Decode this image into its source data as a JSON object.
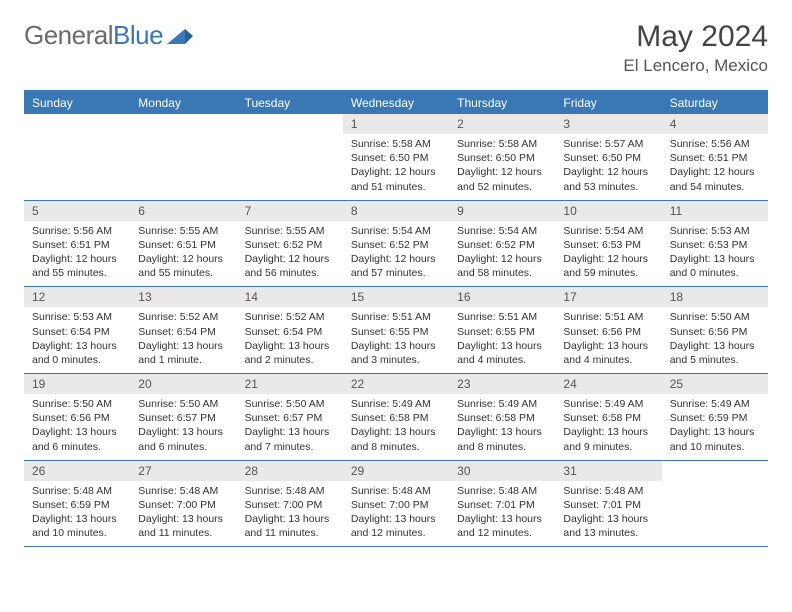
{
  "brand": {
    "part1": "General",
    "part2": "Blue"
  },
  "title": "May 2024",
  "location": "El Lencero, Mexico",
  "colors": {
    "header_bar": "#3a78b5",
    "daynum_bg": "#e9e9e9",
    "text": "#333333",
    "title_text": "#444444",
    "rule": "#3a78b5"
  },
  "days_of_week": [
    "Sunday",
    "Monday",
    "Tuesday",
    "Wednesday",
    "Thursday",
    "Friday",
    "Saturday"
  ],
  "weeks": [
    [
      {
        "blank": true
      },
      {
        "blank": true
      },
      {
        "blank": true
      },
      {
        "n": "1",
        "sr": "5:58 AM",
        "ss": "6:50 PM",
        "dl": "12 hours and 51 minutes."
      },
      {
        "n": "2",
        "sr": "5:58 AM",
        "ss": "6:50 PM",
        "dl": "12 hours and 52 minutes."
      },
      {
        "n": "3",
        "sr": "5:57 AM",
        "ss": "6:50 PM",
        "dl": "12 hours and 53 minutes."
      },
      {
        "n": "4",
        "sr": "5:56 AM",
        "ss": "6:51 PM",
        "dl": "12 hours and 54 minutes."
      }
    ],
    [
      {
        "n": "5",
        "sr": "5:56 AM",
        "ss": "6:51 PM",
        "dl": "12 hours and 55 minutes."
      },
      {
        "n": "6",
        "sr": "5:55 AM",
        "ss": "6:51 PM",
        "dl": "12 hours and 55 minutes."
      },
      {
        "n": "7",
        "sr": "5:55 AM",
        "ss": "6:52 PM",
        "dl": "12 hours and 56 minutes."
      },
      {
        "n": "8",
        "sr": "5:54 AM",
        "ss": "6:52 PM",
        "dl": "12 hours and 57 minutes."
      },
      {
        "n": "9",
        "sr": "5:54 AM",
        "ss": "6:52 PM",
        "dl": "12 hours and 58 minutes."
      },
      {
        "n": "10",
        "sr": "5:54 AM",
        "ss": "6:53 PM",
        "dl": "12 hours and 59 minutes."
      },
      {
        "n": "11",
        "sr": "5:53 AM",
        "ss": "6:53 PM",
        "dl": "13 hours and 0 minutes."
      }
    ],
    [
      {
        "n": "12",
        "sr": "5:53 AM",
        "ss": "6:54 PM",
        "dl": "13 hours and 0 minutes."
      },
      {
        "n": "13",
        "sr": "5:52 AM",
        "ss": "6:54 PM",
        "dl": "13 hours and 1 minute."
      },
      {
        "n": "14",
        "sr": "5:52 AM",
        "ss": "6:54 PM",
        "dl": "13 hours and 2 minutes."
      },
      {
        "n": "15",
        "sr": "5:51 AM",
        "ss": "6:55 PM",
        "dl": "13 hours and 3 minutes."
      },
      {
        "n": "16",
        "sr": "5:51 AM",
        "ss": "6:55 PM",
        "dl": "13 hours and 4 minutes."
      },
      {
        "n": "17",
        "sr": "5:51 AM",
        "ss": "6:56 PM",
        "dl": "13 hours and 4 minutes."
      },
      {
        "n": "18",
        "sr": "5:50 AM",
        "ss": "6:56 PM",
        "dl": "13 hours and 5 minutes."
      }
    ],
    [
      {
        "n": "19",
        "sr": "5:50 AM",
        "ss": "6:56 PM",
        "dl": "13 hours and 6 minutes."
      },
      {
        "n": "20",
        "sr": "5:50 AM",
        "ss": "6:57 PM",
        "dl": "13 hours and 6 minutes."
      },
      {
        "n": "21",
        "sr": "5:50 AM",
        "ss": "6:57 PM",
        "dl": "13 hours and 7 minutes."
      },
      {
        "n": "22",
        "sr": "5:49 AM",
        "ss": "6:58 PM",
        "dl": "13 hours and 8 minutes."
      },
      {
        "n": "23",
        "sr": "5:49 AM",
        "ss": "6:58 PM",
        "dl": "13 hours and 8 minutes."
      },
      {
        "n": "24",
        "sr": "5:49 AM",
        "ss": "6:58 PM",
        "dl": "13 hours and 9 minutes."
      },
      {
        "n": "25",
        "sr": "5:49 AM",
        "ss": "6:59 PM",
        "dl": "13 hours and 10 minutes."
      }
    ],
    [
      {
        "n": "26",
        "sr": "5:48 AM",
        "ss": "6:59 PM",
        "dl": "13 hours and 10 minutes."
      },
      {
        "n": "27",
        "sr": "5:48 AM",
        "ss": "7:00 PM",
        "dl": "13 hours and 11 minutes."
      },
      {
        "n": "28",
        "sr": "5:48 AM",
        "ss": "7:00 PM",
        "dl": "13 hours and 11 minutes."
      },
      {
        "n": "29",
        "sr": "5:48 AM",
        "ss": "7:00 PM",
        "dl": "13 hours and 12 minutes."
      },
      {
        "n": "30",
        "sr": "5:48 AM",
        "ss": "7:01 PM",
        "dl": "13 hours and 12 minutes."
      },
      {
        "n": "31",
        "sr": "5:48 AM",
        "ss": "7:01 PM",
        "dl": "13 hours and 13 minutes."
      },
      {
        "blank": true
      }
    ]
  ],
  "label_sunrise": "Sunrise: ",
  "label_sunset": "Sunset: ",
  "label_daylight": "Daylight: "
}
